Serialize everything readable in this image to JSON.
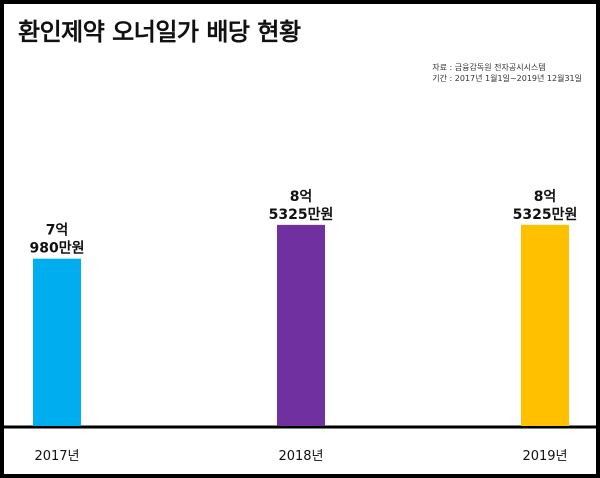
{
  "chart_data": {
    "type": "bar",
    "title": "환인제약 오너일가 배당 현황",
    "source_lines": [
      "자료 : 금융감독원 전자공시시스템",
      "기간 : 2017년 1월1일~2019년 12월31일"
    ],
    "categories": [
      "2017년",
      "2018년",
      "2019년"
    ],
    "values": [
      70980,
      85325,
      85325
    ],
    "unit": "만원",
    "data_labels": [
      [
        "7억",
        "980만원"
      ],
      [
        "8억",
        "5325만원"
      ],
      [
        "8억",
        "5325만원"
      ]
    ],
    "colors": [
      "#00AEEF",
      "#7030A0",
      "#FFC000"
    ],
    "ylim": [
      0,
      140000
    ],
    "grid": false,
    "legend": "none"
  }
}
